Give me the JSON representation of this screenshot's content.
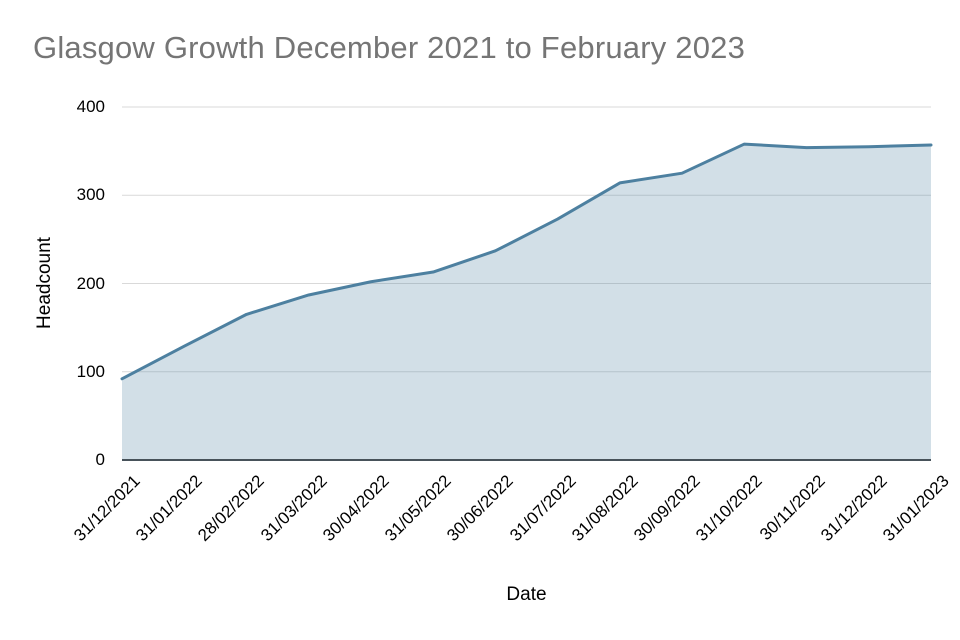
{
  "title": "Glasgow Growth December 2021 to February 2023",
  "chart_data": {
    "type": "area",
    "title": "Glasgow Growth December 2021 to February 2023",
    "xlabel": "Date",
    "ylabel": "Headcount",
    "x": [
      "31/12/2021",
      "31/01/2022",
      "28/02/2022",
      "31/03/2022",
      "30/04/2022",
      "31/05/2022",
      "30/06/2022",
      "31/07/2022",
      "31/08/2022",
      "30/09/2022",
      "31/10/2022",
      "30/11/2022",
      "31/12/2022",
      "31/01/2023"
    ],
    "series": [
      {
        "name": "Headcount",
        "values": [
          92,
          129,
          165,
          187,
          202,
          213,
          237,
          273,
          314,
          325,
          358,
          354,
          355,
          357
        ]
      }
    ],
    "ylim": [
      0,
      400
    ],
    "y_ticks": [
      0,
      100,
      200,
      300,
      400
    ],
    "grid": "horizontal",
    "legend": "none",
    "colors": {
      "line": "#4d80a0",
      "fill_opacity": "0.25",
      "title": "#757575",
      "gridline": "#d9d9d9",
      "axis_line": "#47525a",
      "tick_label": "#000000"
    }
  }
}
